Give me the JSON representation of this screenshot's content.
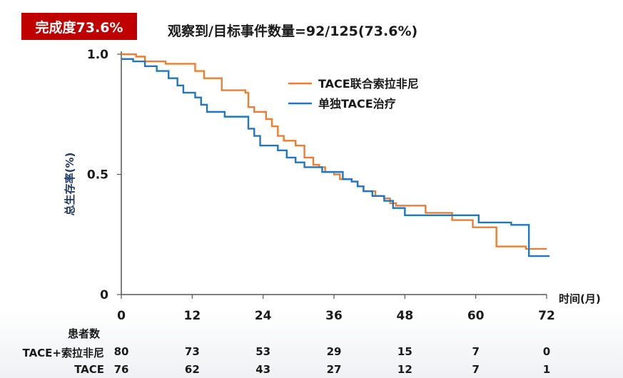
{
  "badge": {
    "text": "完成度73.6%",
    "color": "#c00000"
  },
  "headline": "观察到/目标事件数量=92/125(73.6%)",
  "chart_data": {
    "type": "line",
    "step": true,
    "xlabel": "时间(月)",
    "ylabel": "总生存率(%)",
    "xlim": [
      0,
      72
    ],
    "ylim": [
      0,
      1.0
    ],
    "x_ticks": [
      "0",
      "12",
      "24",
      "36",
      "48",
      "60",
      "72"
    ],
    "y_ticks": [
      "0",
      "0.5",
      "1.0"
    ],
    "legend_position": "top-right",
    "series": [
      {
        "name": "TACE联合索拉非尼",
        "color": "#ed7d31",
        "x": [
          0,
          2.5,
          4,
          7.5,
          12.5,
          14,
          17,
          21,
          21.5,
          22.5,
          24.5,
          25.5,
          26.5,
          27.5,
          29.5,
          31,
          32.5,
          33.5,
          34.5,
          36,
          37,
          39,
          40,
          41,
          43,
          44.5,
          45.5,
          46.5,
          51.5,
          56,
          59.5,
          63.5,
          68.5,
          72
        ],
        "y": [
          1.0,
          0.99,
          0.97,
          0.96,
          0.93,
          0.9,
          0.85,
          0.84,
          0.78,
          0.76,
          0.73,
          0.7,
          0.66,
          0.64,
          0.62,
          0.57,
          0.54,
          0.53,
          0.51,
          0.5,
          0.48,
          0.47,
          0.45,
          0.43,
          0.41,
          0.4,
          0.38,
          0.37,
          0.34,
          0.31,
          0.28,
          0.2,
          0.19,
          0.19
        ]
      },
      {
        "name": "单独TACE治疗",
        "color": "#1f77c4",
        "x": [
          0,
          2,
          4,
          6,
          8,
          9.5,
          10.5,
          12.5,
          13.5,
          14.5,
          17.5,
          21.5,
          22.5,
          23.5,
          26.5,
          28,
          29.5,
          31,
          34,
          37.5,
          39,
          40,
          41,
          42.5,
          44.5,
          46,
          48,
          52,
          56,
          60.5,
          66,
          69,
          72.5
        ],
        "y": [
          0.98,
          0.97,
          0.95,
          0.93,
          0.9,
          0.87,
          0.84,
          0.82,
          0.79,
          0.76,
          0.74,
          0.69,
          0.66,
          0.62,
          0.6,
          0.57,
          0.55,
          0.53,
          0.51,
          0.48,
          0.47,
          0.45,
          0.43,
          0.41,
          0.39,
          0.36,
          0.33,
          0.33,
          0.33,
          0.3,
          0.29,
          0.16,
          0.16
        ]
      }
    ]
  },
  "risk_table": {
    "header": "患者数",
    "rows": [
      {
        "label": "TACE+索拉非尼",
        "values": [
          "80",
          "73",
          "53",
          "29",
          "15",
          "7",
          "0"
        ]
      },
      {
        "label": "TACE",
        "values": [
          "76",
          "62",
          "43",
          "27",
          "12",
          "7",
          "1"
        ]
      }
    ]
  }
}
